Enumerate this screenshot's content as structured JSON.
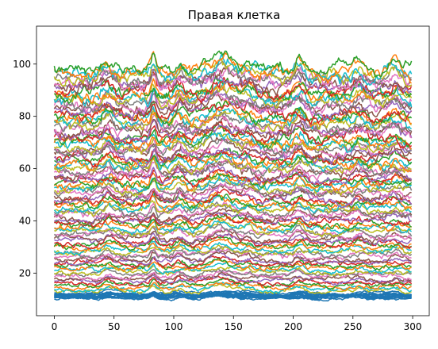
{
  "chart_data": {
    "type": "line",
    "title": "Правая клетка",
    "xlabel": "",
    "ylabel": "",
    "xlim": [
      -14.9,
      313.9
    ],
    "ylim": [
      3.7,
      114.5
    ],
    "xticks": [
      0,
      50,
      100,
      150,
      200,
      250,
      300
    ],
    "yticks": [
      20,
      40,
      60,
      80,
      100
    ],
    "grid": false,
    "legend": false,
    "n_points": 300,
    "palette": [
      "#1f77b4",
      "#ff7f0e",
      "#2ca02c",
      "#d62728",
      "#9467bd",
      "#8c564b",
      "#e377c2",
      "#7f7f7f",
      "#bcbd22",
      "#17becf"
    ],
    "series_baselines": [
      10.8,
      11.0,
      11.2,
      11.4,
      11.6,
      10.6,
      11.1,
      10.9,
      11.3,
      11.5,
      10.7,
      11.2,
      10.9,
      11.0,
      11.4,
      12.2,
      13.0,
      13.8,
      14.5,
      15.3,
      16.2,
      17.0,
      17.8,
      18.6,
      19.4,
      20.3,
      21.1,
      21.9,
      22.6,
      23.5,
      24.4,
      25.3,
      26.2,
      27.0,
      27.9,
      28.8,
      29.7,
      30.6,
      31.4,
      32.3,
      33.2,
      34.1,
      35.0,
      35.9,
      36.8,
      37.7,
      38.6,
      39.5,
      40.4,
      41.3,
      42.2,
      43.1,
      44.0,
      44.9,
      45.8,
      46.7,
      47.6,
      48.5,
      49.4,
      50.3,
      51.2,
      52.1,
      53.0,
      53.9,
      54.8,
      55.7,
      56.6,
      57.5,
      58.4,
      59.3,
      60.2,
      61.1,
      62.0,
      62.9,
      63.8,
      64.7,
      65.6,
      66.5,
      67.4,
      68.3,
      69.2,
      70.1,
      71.0,
      72.0,
      73.0,
      74.0,
      75.0,
      76.0,
      77.0,
      78.0,
      79.0,
      80.0,
      81.0,
      82.0,
      83.0,
      84.0,
      85.0,
      86.0,
      87.0,
      88.0,
      89.0,
      90.0,
      91.0,
      92.0,
      93.0,
      94.0,
      95.0,
      96.0,
      97.0,
      98.5
    ]
  }
}
